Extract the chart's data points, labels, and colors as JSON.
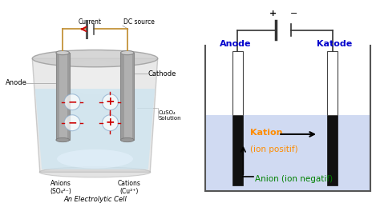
{
  "bg_color": "#ffffff",
  "left_panel": {
    "title": "An Electrolytic Cell",
    "labels": {
      "anode": "Anode",
      "cathode": "Cathode",
      "current": "Current",
      "dc_source": "DC source",
      "anions": "Anions\n(SO₄²⁻)",
      "cations": "Cations\n(Cu²⁺)",
      "solution": "CuSO₄\nSolution"
    }
  },
  "right_panel": {
    "labels": {
      "anode": "Anode",
      "katode": "Katode",
      "kation": "Kation",
      "ion_positif": "(ion positif)",
      "anion": "Anion (ion negatif)",
      "plus": "+",
      "minus": "−"
    },
    "colors": {
      "anode_text": "#0000cc",
      "katode_text": "#0000cc",
      "kation_text": "#ff8c00",
      "ion_positif_text": "#ff8c00",
      "anion_text": "#008000",
      "solution_fill": "#c8d4f0",
      "electrode_black": "#111111",
      "electrode_white": "#ffffff",
      "wire_color": "#333333",
      "container_border": "#555555"
    }
  }
}
